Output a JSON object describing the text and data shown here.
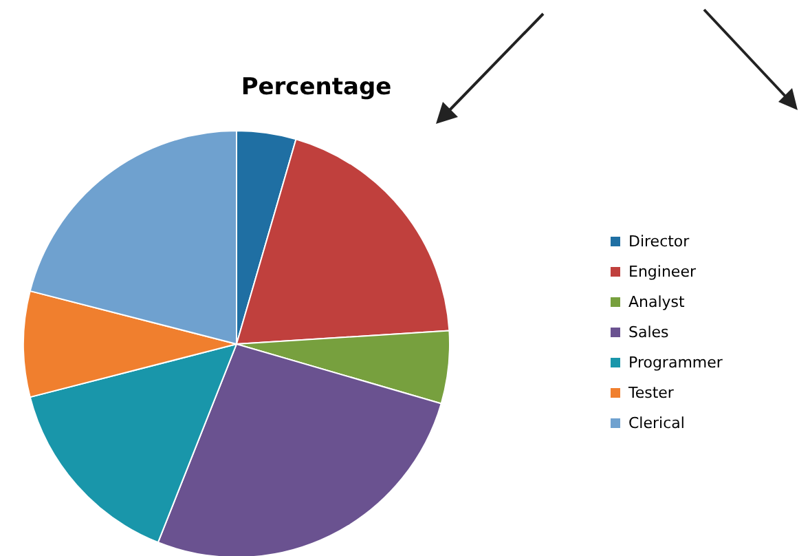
{
  "chart_data": {
    "type": "pie",
    "title": "Percentage",
    "categories": [
      "Director",
      "Engineer",
      "Analyst",
      "Sales",
      "Programmer",
      "Tester",
      "Clerical"
    ],
    "values": [
      4.5,
      19.5,
      5.5,
      26.5,
      15,
      8,
      21
    ],
    "colors": [
      "#1f6fa3",
      "#c0403d",
      "#77a03e",
      "#6a5290",
      "#1996aa",
      "#f07f2e",
      "#6fa1cf"
    ],
    "legend": "right"
  }
}
